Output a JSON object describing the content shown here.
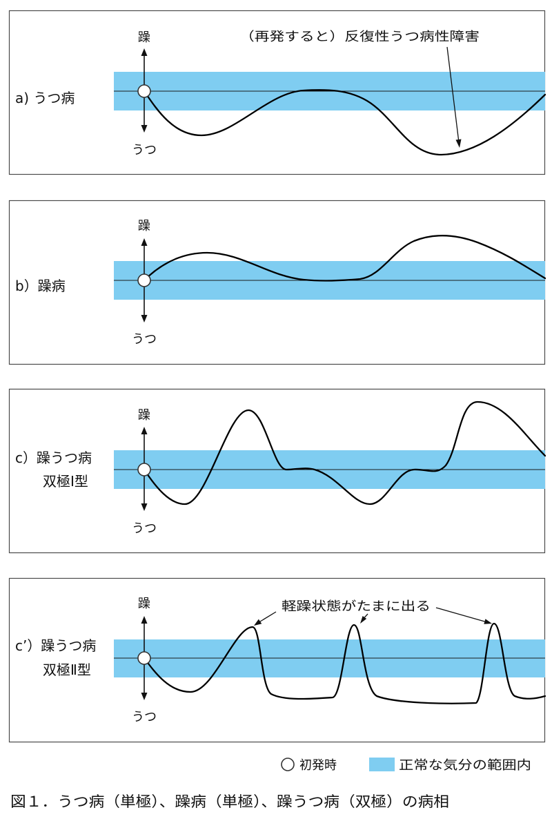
{
  "colors": {
    "normal_band": "#7fcdf1",
    "curve": "#000000",
    "frame": "#4a4a4a"
  },
  "panels": [
    {
      "label_line1": "a) うつ病",
      "up_label": "躁",
      "down_label": "うつ",
      "annotation": "（再発すると）反復性うつ病性障害"
    },
    {
      "label_line1": "b）躁病",
      "up_label": "躁",
      "down_label": "うつ"
    },
    {
      "label_line1": "c）躁うつ病",
      "label_line2": "双極Ⅰ型",
      "up_label": "躁",
      "down_label": "うつ"
    },
    {
      "label_line1": "c’）躁うつ病",
      "label_line2": "双極Ⅱ型",
      "up_label": "躁",
      "down_label": "うつ",
      "annotation": "軽躁状態がたまに出る"
    }
  ],
  "legend": {
    "onset_label": "初発時",
    "normal_range_label": "正常な気分の範囲内"
  },
  "caption": "図１．うつ病（単極）、躁病（単極）、躁うつ病（双極）の病相"
}
